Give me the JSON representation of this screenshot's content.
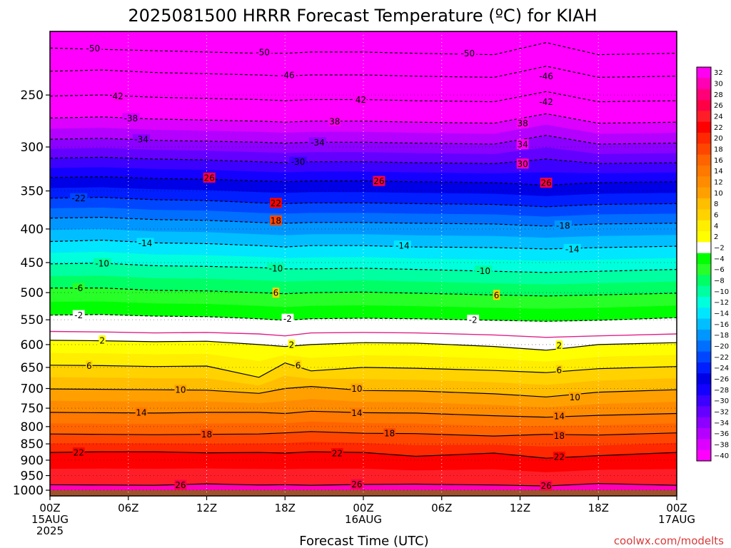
{
  "chart_data": {
    "type": "heatmap",
    "title": "2025081500 HRRR Forecast Temperature (ºC) for KIAH",
    "xlabel": "Forecast Time (UTC)",
    "ylabel": "",
    "credit": "coolwx.com/modelts",
    "x_range_hours": [
      0,
      48
    ],
    "x_ticks": [
      {
        "hour": 0,
        "lines": [
          "00Z",
          "15AUG",
          "2025"
        ]
      },
      {
        "hour": 6,
        "lines": [
          "06Z"
        ]
      },
      {
        "hour": 12,
        "lines": [
          "12Z"
        ]
      },
      {
        "hour": 18,
        "lines": [
          "18Z"
        ]
      },
      {
        "hour": 24,
        "lines": [
          "00Z",
          "16AUG"
        ]
      },
      {
        "hour": 30,
        "lines": [
          "06Z"
        ]
      },
      {
        "hour": 36,
        "lines": [
          "12Z"
        ]
      },
      {
        "hour": 42,
        "lines": [
          "18Z"
        ]
      },
      {
        "hour": 48,
        "lines": [
          "00Z",
          "17AUG"
        ]
      }
    ],
    "y_axis": {
      "type": "pressure-log",
      "units": "hPa",
      "range": [
        1000,
        200
      ],
      "ticks": [
        250,
        300,
        350,
        400,
        450,
        500,
        550,
        600,
        650,
        700,
        750,
        800,
        850,
        900,
        950,
        1000
      ]
    },
    "surface_pressure_hpa": 1000,
    "grid": true,
    "colorbar": {
      "levels": [
        32,
        30,
        28,
        26,
        24,
        22,
        20,
        18,
        16,
        14,
        12,
        10,
        8,
        6,
        4,
        2,
        -2,
        -4,
        -6,
        -8,
        -10,
        -12,
        -14,
        -16,
        -18,
        -20,
        -22,
        -24,
        -26,
        -28,
        -30,
        -32,
        -34,
        -36,
        -38,
        -40
      ],
      "colors": [
        "#ff00f0",
        "#ff00b4",
        "#ff0078",
        "#ff0046",
        "#ff1e28",
        "#ff0000",
        "#ff2800",
        "#ff4600",
        "#ff6400",
        "#ff7800",
        "#ff8c00",
        "#ffa000",
        "#ffbe00",
        "#ffd200",
        "#ffee00",
        "#ffff00",
        "#ffffff",
        "#00ff00",
        "#28ff28",
        "#00ff64",
        "#00ffa0",
        "#00ffdc",
        "#00e6ff",
        "#00beff",
        "#0096ff",
        "#006eff",
        "#0046ff",
        "#001eff",
        "#0000e6",
        "#1400ff",
        "#3c00ff",
        "#6400ff",
        "#8c00ff",
        "#b400ff",
        "#dc00ff",
        "#ff00ff"
      ]
    },
    "series": [
      {
        "temp": 26,
        "pressure": [
          981,
          982,
          983,
          978,
          982,
          981,
          983,
          980,
          979,
          982,
          985,
          977,
          983
        ]
      },
      {
        "temp": 22,
        "pressure": [
          876,
          874,
          874,
          877,
          876,
          878,
          874,
          876,
          888,
          878,
          894,
          886,
          876
        ]
      },
      {
        "temp": 18,
        "pressure": [
          821,
          822,
          823,
          822,
          821,
          818,
          814,
          819,
          820,
          827,
          822,
          824,
          818
        ]
      },
      {
        "temp": 14,
        "pressure": [
          761,
          762,
          763,
          761,
          761,
          764,
          758,
          762,
          763,
          770,
          774,
          769,
          764
        ]
      },
      {
        "temp": 10,
        "pressure": [
          701,
          702,
          703,
          704,
          712,
          700,
          695,
          705,
          706,
          713,
          721,
          709,
          703
        ]
      },
      {
        "temp": 6,
        "pressure": [
          645,
          646,
          648,
          647,
          673,
          640,
          658,
          650,
          652,
          657,
          662,
          653,
          648
        ]
      },
      {
        "temp": 2,
        "pressure": [
          591,
          592,
          594,
          593,
          600,
          604,
          600,
          596,
          597,
          604,
          612,
          600,
          596
        ]
      },
      {
        "temp": 0,
        "pressure": [
          573,
          574,
          576,
          575,
          578,
          582,
          576,
          575,
          576,
          580,
          585,
          582,
          578
        ]
      },
      {
        "temp": -2,
        "pressure": [
          541,
          540,
          543,
          544,
          548,
          551,
          548,
          547,
          548,
          551,
          553,
          551,
          546
        ]
      },
      {
        "temp": -6,
        "pressure": [
          492,
          492,
          496,
          497,
          500,
          502,
          500,
          499,
          501,
          504,
          506,
          504,
          501
        ]
      },
      {
        "temp": -10,
        "pressure": [
          452,
          451,
          455,
          456,
          458,
          460,
          460,
          459,
          461,
          464,
          466,
          464,
          461
        ]
      },
      {
        "temp": -14,
        "pressure": [
          418,
          416,
          420,
          421,
          424,
          426,
          424,
          424,
          426,
          427,
          429,
          427,
          425
        ]
      },
      {
        "temp": -18,
        "pressure": [
          385,
          384,
          387,
          388,
          391,
          392,
          391,
          391,
          392,
          393,
          396,
          393,
          392
        ]
      },
      {
        "temp": -22,
        "pressure": [
          359,
          358,
          361,
          362,
          365,
          366,
          365,
          365,
          366,
          367,
          370,
          367,
          366
        ]
      },
      {
        "temp": -26,
        "pressure": [
          334,
          333,
          335,
          336,
          338,
          339,
          338,
          338,
          339,
          340,
          343,
          340,
          339
        ]
      },
      {
        "temp": -30,
        "pressure": [
          312,
          311,
          313,
          314,
          316,
          317,
          316,
          316,
          317,
          318,
          313,
          318,
          317
        ]
      },
      {
        "temp": -34,
        "pressure": [
          292,
          291,
          293,
          294,
          295,
          296,
          295,
          295,
          296,
          297,
          288,
          297,
          296
        ]
      },
      {
        "temp": -38,
        "pressure": [
          271,
          270,
          272,
          273,
          274,
          275,
          274,
          274,
          275,
          276,
          267,
          276,
          275
        ]
      },
      {
        "temp": -42,
        "pressure": [
          251,
          250,
          252,
          253,
          254,
          255,
          254,
          254,
          255,
          256,
          247,
          256,
          255
        ]
      },
      {
        "temp": -46,
        "pressure": [
          230,
          229,
          231,
          232,
          233,
          234,
          233,
          233,
          234,
          235,
          226,
          235,
          234
        ]
      },
      {
        "temp": -50,
        "pressure": [
          212,
          213,
          214,
          215,
          216,
          216,
          215,
          215,
          216,
          217,
          208,
          217,
          216
        ]
      }
    ],
    "series_hours": [
      0,
      4,
      8,
      12,
      16,
      18,
      20,
      24,
      28,
      34,
      38,
      42,
      48
    ],
    "contour_labels": [
      {
        "text": "-50",
        "hour": 3.3,
        "p": 212
      },
      {
        "text": "-50",
        "hour": 16.3,
        "p": 215
      },
      {
        "text": "-50",
        "hour": 32.0,
        "p": 216
      },
      {
        "text": "-46",
        "hour": 18.2,
        "p": 233
      },
      {
        "text": "-46",
        "hour": 38.0,
        "p": 234
      },
      {
        "text": "42",
        "hour": 5.2,
        "p": 251
      },
      {
        "text": "42",
        "hour": 23.8,
        "p": 254
      },
      {
        "text": "-42",
        "hour": 38.0,
        "p": 256
      },
      {
        "text": "-38",
        "hour": 6.2,
        "p": 271
      },
      {
        "text": "38",
        "hour": 21.8,
        "p": 274
      },
      {
        "text": "38",
        "hour": 36.2,
        "p": 276
      },
      {
        "text": "-34",
        "hour": 7.0,
        "p": 292
      },
      {
        "text": "-34",
        "hour": 20.5,
        "p": 295
      },
      {
        "text": "34",
        "hour": 36.2,
        "p": 297
      },
      {
        "text": "-30",
        "hour": 19.0,
        "p": 316
      },
      {
        "text": "30",
        "hour": 36.2,
        "p": 318
      },
      {
        "text": "26",
        "hour": 12.2,
        "p": 334
      },
      {
        "text": "26",
        "hour": 25.2,
        "p": 338
      },
      {
        "text": "26",
        "hour": 38.0,
        "p": 340
      },
      {
        "text": "-22",
        "hour": 2.2,
        "p": 359
      },
      {
        "text": "22",
        "hour": 17.3,
        "p": 365
      },
      {
        "text": "18",
        "hour": 17.3,
        "p": 388
      },
      {
        "text": "-18",
        "hour": 39.3,
        "p": 395
      },
      {
        "text": "-14",
        "hour": 7.3,
        "p": 420
      },
      {
        "text": "-14",
        "hour": 27.0,
        "p": 424
      },
      {
        "text": "-14",
        "hour": 40.0,
        "p": 429
      },
      {
        "text": "-10",
        "hour": 4.0,
        "p": 451
      },
      {
        "text": "-10",
        "hour": 17.3,
        "p": 459
      },
      {
        "text": "-10",
        "hour": 33.2,
        "p": 463
      },
      {
        "text": "-6",
        "hour": 2.2,
        "p": 492
      },
      {
        "text": "6",
        "hour": 17.3,
        "p": 500
      },
      {
        "text": "6",
        "hour": 34.2,
        "p": 504
      },
      {
        "text": "-2",
        "hour": 2.2,
        "p": 541
      },
      {
        "text": "-2",
        "hour": 18.2,
        "p": 548
      },
      {
        "text": "-2",
        "hour": 32.4,
        "p": 550
      },
      {
        "text": "2",
        "hour": 4.0,
        "p": 591
      },
      {
        "text": "2",
        "hour": 18.5,
        "p": 600
      },
      {
        "text": "2",
        "hour": 39.0,
        "p": 602
      },
      {
        "text": "6",
        "hour": 3.0,
        "p": 646
      },
      {
        "text": "6",
        "hour": 19.0,
        "p": 645
      },
      {
        "text": "6",
        "hour": 39.0,
        "p": 656
      },
      {
        "text": "10",
        "hour": 10.0,
        "p": 703
      },
      {
        "text": "10",
        "hour": 23.5,
        "p": 700
      },
      {
        "text": "10",
        "hour": 40.2,
        "p": 721
      },
      {
        "text": "14",
        "hour": 7.0,
        "p": 761
      },
      {
        "text": "14",
        "hour": 23.5,
        "p": 762
      },
      {
        "text": "14",
        "hour": 39.0,
        "p": 771
      },
      {
        "text": "18",
        "hour": 12.0,
        "p": 822
      },
      {
        "text": "18",
        "hour": 26.0,
        "p": 819
      },
      {
        "text": "18",
        "hour": 39.0,
        "p": 826
      },
      {
        "text": "22",
        "hour": 2.2,
        "p": 876
      },
      {
        "text": "22",
        "hour": 22.0,
        "p": 878
      },
      {
        "text": "22",
        "hour": 39.0,
        "p": 889
      },
      {
        "text": "26",
        "hour": 10.0,
        "p": 981
      },
      {
        "text": "26",
        "hour": 23.5,
        "p": 979
      },
      {
        "text": "26",
        "hour": 38.0,
        "p": 984
      }
    ]
  }
}
